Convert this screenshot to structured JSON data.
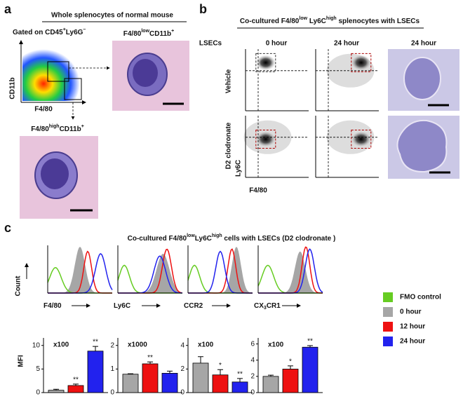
{
  "panel_a": {
    "label": "a",
    "title": "Whole splenocytes of normal mouse",
    "gate": [
      "Gated on CD45",
      "+",
      "Ly6G",
      "–"
    ],
    "y_axis": "CD11b",
    "x_axis": "F4/80",
    "image1_label": [
      "F4/80",
      "low",
      "CD11b",
      "+"
    ],
    "image2_label": [
      "F4/80",
      "high",
      "CD11b",
      "+"
    ]
  },
  "panel_b": {
    "label": "b",
    "title": [
      "Co-cultured F4/80",
      "low",
      " Ly6C",
      "high",
      " splenocytes with LSECs"
    ],
    "row_header": "LSECs",
    "col1": "0 hour",
    "col2": "24 hour",
    "col3": "24 hour",
    "row1": "Vehicle",
    "row2": "D2 clodronate",
    "y_axis": "Ly6C",
    "x_axis": "F4/80"
  },
  "panel_c": {
    "label": "c",
    "title": [
      "Co-cultured F4/80",
      "low",
      "Ly6C",
      "high",
      " cells with LSECs (D2 clodronate )"
    ],
    "count": "Count",
    "markers": [
      [
        "F4/80"
      ],
      [
        "Ly6C"
      ],
      [
        "CCR2"
      ],
      [
        "CX",
        "3",
        "CR1"
      ]
    ],
    "mfi": "MFI",
    "legend": [
      {
        "name": "FMO control",
        "color": "#66cc22"
      },
      {
        "name": "0 hour",
        "color": "#a6a6a6"
      },
      {
        "name": "12 hour",
        "color": "#ee1111"
      },
      {
        "name": "24 hour",
        "color": "#2222ee"
      }
    ]
  },
  "chart_data": [
    {
      "type": "bar",
      "multiplier": "x100",
      "values": [
        0.5,
        1.5,
        8.8
      ],
      "errors": [
        0.2,
        0.3,
        1.0
      ],
      "colors": [
        "#a6a6a6",
        "#ee1111",
        "#2222ee"
      ],
      "ylim": [
        0,
        11
      ],
      "yticks": [
        0,
        5,
        10
      ],
      "significance": [
        null,
        "**",
        "**"
      ]
    },
    {
      "type": "bar",
      "multiplier": "x1000",
      "values": [
        0.78,
        1.22,
        0.82
      ],
      "errors": [
        0.02,
        0.08,
        0.09
      ],
      "colors": [
        "#a6a6a6",
        "#ee1111",
        "#2222ee"
      ],
      "ylim": [
        0,
        2.2
      ],
      "yticks": [
        0,
        1,
        2
      ],
      "significance": [
        null,
        "**",
        null
      ]
    },
    {
      "type": "bar",
      "multiplier": "x100",
      "values": [
        2.5,
        1.5,
        0.9
      ],
      "errors": [
        0.55,
        0.45,
        0.3
      ],
      "colors": [
        "#a6a6a6",
        "#ee1111",
        "#2222ee"
      ],
      "ylim": [
        0,
        4.4
      ],
      "yticks": [
        0,
        2,
        4
      ],
      "significance": [
        null,
        "*",
        "**"
      ]
    },
    {
      "type": "bar",
      "multiplier": "x100",
      "values": [
        2.0,
        2.9,
        5.6
      ],
      "errors": [
        0.15,
        0.4,
        0.2
      ],
      "colors": [
        "#a6a6a6",
        "#ee1111",
        "#2222ee"
      ],
      "ylim": [
        0,
        6.4
      ],
      "yticks": [
        0,
        2,
        4,
        6
      ],
      "significance": [
        null,
        "*",
        "**"
      ]
    }
  ]
}
